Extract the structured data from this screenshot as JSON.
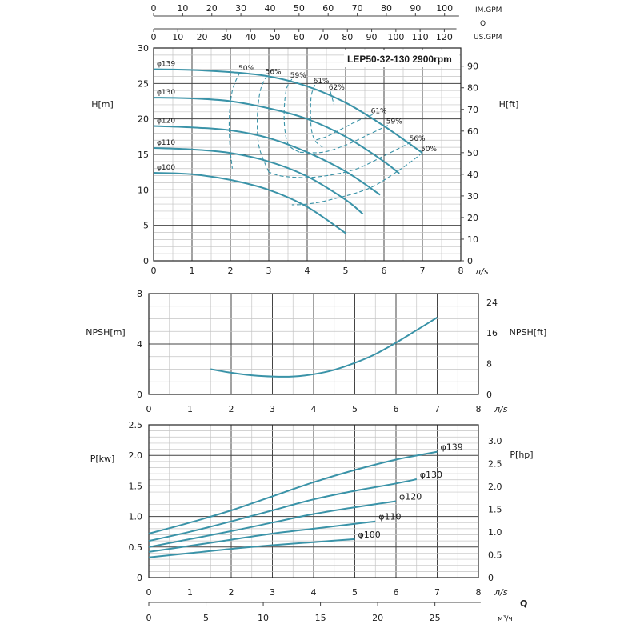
{
  "chart_data": [
    {
      "type": "line",
      "title": "LEP50-32-130 2900rpm",
      "units": {
        "x": "л/s",
        "y_left": "H[m]",
        "y_right": "H[ft]"
      },
      "top_axes": {
        "row1_label": "IM.GPM",
        "row1_ticks": [
          "0",
          "10",
          "20",
          "30",
          "40",
          "50",
          "60",
          "70",
          "80",
          "90",
          "100"
        ],
        "row2_label": "Q",
        "row3_label": "US.GPM",
        "row3_ticks": [
          "0",
          "10",
          "20",
          "30",
          "40",
          "50",
          "60",
          "70",
          "80",
          "90",
          "100",
          "110",
          "120"
        ]
      },
      "xlim": [
        0,
        8
      ],
      "ylim": [
        0,
        30
      ],
      "x_ticks": [
        "0",
        "1",
        "2",
        "3",
        "4",
        "5",
        "6",
        "7",
        "8"
      ],
      "y_ticks": [
        "0",
        "5",
        "10",
        "15",
        "20",
        "25",
        "30"
      ],
      "y2_ticks": [
        "0",
        "10",
        "20",
        "30",
        "40",
        "50",
        "60",
        "70",
        "80",
        "90"
      ],
      "grid": true,
      "series": [
        {
          "name": "φ139",
          "points": [
            [
              0,
              27
            ],
            [
              1,
              26.9
            ],
            [
              2,
              26.6
            ],
            [
              3,
              26
            ],
            [
              4,
              24.6
            ],
            [
              5,
              22.3
            ],
            [
              6,
              19
            ],
            [
              7,
              15.2
            ]
          ]
        },
        {
          "name": "φ130",
          "points": [
            [
              0,
              23
            ],
            [
              1,
              22.9
            ],
            [
              2,
              22.5
            ],
            [
              3,
              21.5
            ],
            [
              4,
              20
            ],
            [
              5,
              17.5
            ],
            [
              6,
              14
            ],
            [
              6.4,
              12.3
            ]
          ]
        },
        {
          "name": "φ120",
          "points": [
            [
              0,
              19
            ],
            [
              1,
              18.8
            ],
            [
              2,
              18.4
            ],
            [
              3,
              17.3
            ],
            [
              4,
              15.3
            ],
            [
              5,
              12.6
            ],
            [
              5.9,
              9.3
            ]
          ]
        },
        {
          "name": "φ110",
          "points": [
            [
              0,
              15.9
            ],
            [
              1,
              15.7
            ],
            [
              2,
              15.2
            ],
            [
              3,
              14
            ],
            [
              4,
              11.9
            ],
            [
              5,
              8.6
            ],
            [
              5.45,
              6.6
            ]
          ]
        },
        {
          "name": "φ100",
          "points": [
            [
              0,
              12.4
            ],
            [
              1,
              12.2
            ],
            [
              2,
              11.4
            ],
            [
              3,
              10
            ],
            [
              4,
              7.6
            ],
            [
              5,
              3.9
            ]
          ]
        }
      ],
      "efficiency_contours": [
        {
          "label": "50%",
          "points": [
            [
              2.25,
              26.6
            ],
            [
              2.05,
              24
            ],
            [
              1.97,
              20
            ],
            [
              1.99,
              16
            ],
            [
              2.05,
              13
            ]
          ]
        },
        {
          "label": "56%",
          "points": [
            [
              2.95,
              26.1
            ],
            [
              2.78,
              24
            ],
            [
              2.7,
              20
            ],
            [
              2.75,
              16
            ],
            [
              3,
              12.5
            ]
          ]
        },
        {
          "label": "59%",
          "points": [
            [
              3.6,
              25.6
            ],
            [
              3.45,
              24
            ],
            [
              3.4,
              20
            ],
            [
              3.5,
              16.5
            ],
            [
              3.8,
              15.3
            ]
          ]
        },
        {
          "label": "61%",
          "points": [
            [
              4.2,
              24.8
            ],
            [
              4.1,
              23
            ],
            [
              4.1,
              19
            ],
            [
              4.2,
              17
            ],
            [
              4.4,
              16
            ]
          ]
        },
        {
          "label": "62%",
          "points": [
            [
              4.6,
              23.9
            ],
            [
              4.7,
              22
            ]
          ]
        },
        {
          "label": "61%",
          "points": [
            [
              5.7,
              20.6
            ],
            [
              5.3,
              19.7
            ],
            [
              4.9,
              18.6
            ],
            [
              4.5,
              17.5
            ],
            [
              4.2,
              17
            ]
          ]
        },
        {
          "label": "59%",
          "points": [
            [
              6.1,
              19.1
            ],
            [
              5.6,
              17.8
            ],
            [
              5.0,
              16.3
            ],
            [
              4.4,
              15.3
            ],
            [
              3.8,
              15.3
            ]
          ]
        },
        {
          "label": "56%",
          "points": [
            [
              6.7,
              16.7
            ],
            [
              6.0,
              14.8
            ],
            [
              5.2,
              12.8
            ],
            [
              4.2,
              11.8
            ],
            [
              3.4,
              11.9
            ],
            [
              3.0,
              12.5
            ]
          ]
        },
        {
          "label": "50%",
          "points": [
            [
              7.0,
              15.2
            ],
            [
              6.4,
              12.8
            ],
            [
              5.6,
              10.2
            ],
            [
              4.6,
              8.6
            ],
            [
              4.0,
              8.0
            ],
            [
              3.6,
              7.9
            ]
          ]
        }
      ]
    },
    {
      "type": "line",
      "ylabel": "NPSH[m]",
      "y2label": "NPSH[ft]",
      "xunit": "л/s",
      "xlim": [
        0,
        8
      ],
      "ylim": [
        0,
        8
      ],
      "x_ticks": [
        "0",
        "1",
        "2",
        "3",
        "4",
        "5",
        "6",
        "7",
        "8"
      ],
      "y_ticks": [
        "0",
        "4",
        "8"
      ],
      "y2_ticks": [
        "0",
        "8",
        "16",
        "24"
      ],
      "grid": true,
      "series": [
        {
          "points": [
            [
              1.5,
              2
            ],
            [
              2,
              1.72
            ],
            [
              2.5,
              1.52
            ],
            [
              3,
              1.42
            ],
            [
              3.5,
              1.42
            ],
            [
              4,
              1.6
            ],
            [
              4.5,
              1.95
            ],
            [
              5,
              2.5
            ],
            [
              5.5,
              3.2
            ],
            [
              6,
              4.1
            ],
            [
              6.5,
              5.1
            ],
            [
              7,
              6.1
            ]
          ]
        }
      ]
    },
    {
      "type": "line",
      "ylabel": "P[kw]",
      "y2label": "P[hp]",
      "xunit": "л/s",
      "bottom_label": "Q",
      "bottom_unit": "м³/ч",
      "xlim": [
        0,
        8
      ],
      "ylim": [
        0,
        2.5
      ],
      "x_ticks": [
        "0",
        "1",
        "2",
        "3",
        "4",
        "5",
        "6",
        "7",
        "8"
      ],
      "y_ticks": [
        "0",
        "0.5",
        "1.0",
        "1.5",
        "2.0",
        "2.5"
      ],
      "y2_ticks": [
        "0",
        "0.5",
        "1.0",
        "1.5",
        "2.0",
        "2.5",
        "3.0"
      ],
      "m3h_ticks": [
        "0",
        "5",
        "10",
        "15",
        "20",
        "25"
      ],
      "grid": true,
      "series": [
        {
          "name": "φ139",
          "points": [
            [
              0,
              0.72
            ],
            [
              1,
              0.9
            ],
            [
              2,
              1.1
            ],
            [
              3,
              1.33
            ],
            [
              4,
              1.56
            ],
            [
              5,
              1.76
            ],
            [
              6,
              1.93
            ],
            [
              7,
              2.06
            ]
          ]
        },
        {
          "name": "φ130",
          "points": [
            [
              0,
              0.6
            ],
            [
              1,
              0.75
            ],
            [
              2,
              0.92
            ],
            [
              3,
              1.1
            ],
            [
              4,
              1.28
            ],
            [
              5,
              1.42
            ],
            [
              6,
              1.54
            ],
            [
              6.5,
              1.61
            ]
          ]
        },
        {
          "name": "φ120",
          "points": [
            [
              0,
              0.5
            ],
            [
              1,
              0.63
            ],
            [
              2,
              0.76
            ],
            [
              3,
              0.9
            ],
            [
              4,
              1.04
            ],
            [
              5,
              1.15
            ],
            [
              6,
              1.25
            ]
          ]
        },
        {
          "name": "φ110",
          "points": [
            [
              0,
              0.42
            ],
            [
              1,
              0.52
            ],
            [
              2,
              0.62
            ],
            [
              3,
              0.72
            ],
            [
              4,
              0.8
            ],
            [
              5,
              0.88
            ],
            [
              5.5,
              0.92
            ]
          ]
        },
        {
          "name": "φ100",
          "points": [
            [
              0,
              0.33
            ],
            [
              1,
              0.4
            ],
            [
              2,
              0.47
            ],
            [
              3,
              0.53
            ],
            [
              4,
              0.58
            ],
            [
              5,
              0.63
            ]
          ]
        }
      ]
    }
  ],
  "colors": {
    "curve": "#3a93a8",
    "grid_major": "#444444",
    "grid_minor": "#c4c4c4",
    "text": "#1a1a1a"
  }
}
